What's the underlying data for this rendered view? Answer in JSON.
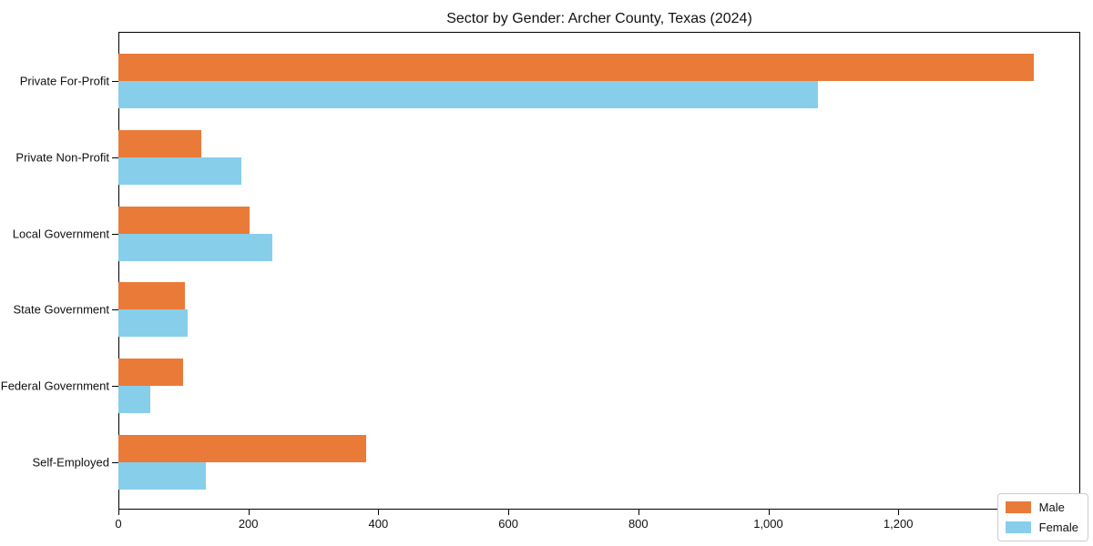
{
  "chart_data": {
    "type": "bar",
    "orientation": "horizontal",
    "title": "Sector by Gender: Archer County, Texas (2024)",
    "categories": [
      "Private For-Profit",
      "Private Non-Profit",
      "Local Government",
      "State Government",
      "Federal Government",
      "Self-Employed"
    ],
    "series": [
      {
        "name": "Male",
        "color": "#e97a38",
        "values": [
          1409,
          128,
          202,
          103,
          100,
          381
        ]
      },
      {
        "name": "Female",
        "color": "#87ceeb",
        "values": [
          1077,
          189,
          237,
          106,
          49,
          135
        ]
      }
    ],
    "xlabel": "",
    "ylabel": "",
    "xlim": [
      0,
      1480
    ],
    "xticks": [
      0,
      200,
      400,
      600,
      800,
      1000,
      1200,
      1400
    ],
    "xtick_labels": [
      "0",
      "200",
      "400",
      "600",
      "800",
      "1,000",
      "1,200",
      "1,400"
    ],
    "grid": false,
    "legend_position": "lower right",
    "axis_color": "#000000",
    "background_color": "#ffffff"
  }
}
